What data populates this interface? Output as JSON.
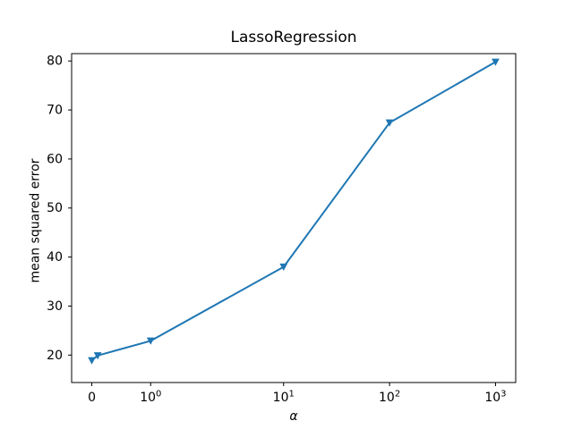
{
  "figure": {
    "background_color": "#ffffff",
    "title": "LassoRegression"
  },
  "chart_data": {
    "type": "line",
    "title": "LassoRegression",
    "xlabel": "α",
    "ylabel": "mean squared error",
    "x_scale": "symlog",
    "x_symlog_linthresh": 2,
    "x_symlog_base": 10,
    "x": [
      0,
      0.1,
      1,
      10,
      100,
      1000
    ],
    "y": [
      18.9,
      19.9,
      22.9,
      38.0,
      67.4,
      79.8
    ],
    "line_color": "#1f77b4",
    "marker": "triangle-down",
    "marker_color": "#1f77b4",
    "xtick_labels": [
      "0",
      "10^0",
      "10^1",
      "10^2",
      "10^3"
    ],
    "xtick_values": [
      0,
      1,
      10,
      100,
      1000
    ],
    "ytick_labels": [
      "20",
      "30",
      "40",
      "50",
      "60",
      "70",
      "80"
    ],
    "ytick_values": [
      20,
      30,
      40,
      50,
      60,
      70,
      80
    ],
    "ylim": [
      14.4,
      81.5
    ],
    "grid": false,
    "legend_position": "none",
    "axes_color": "#000000"
  }
}
